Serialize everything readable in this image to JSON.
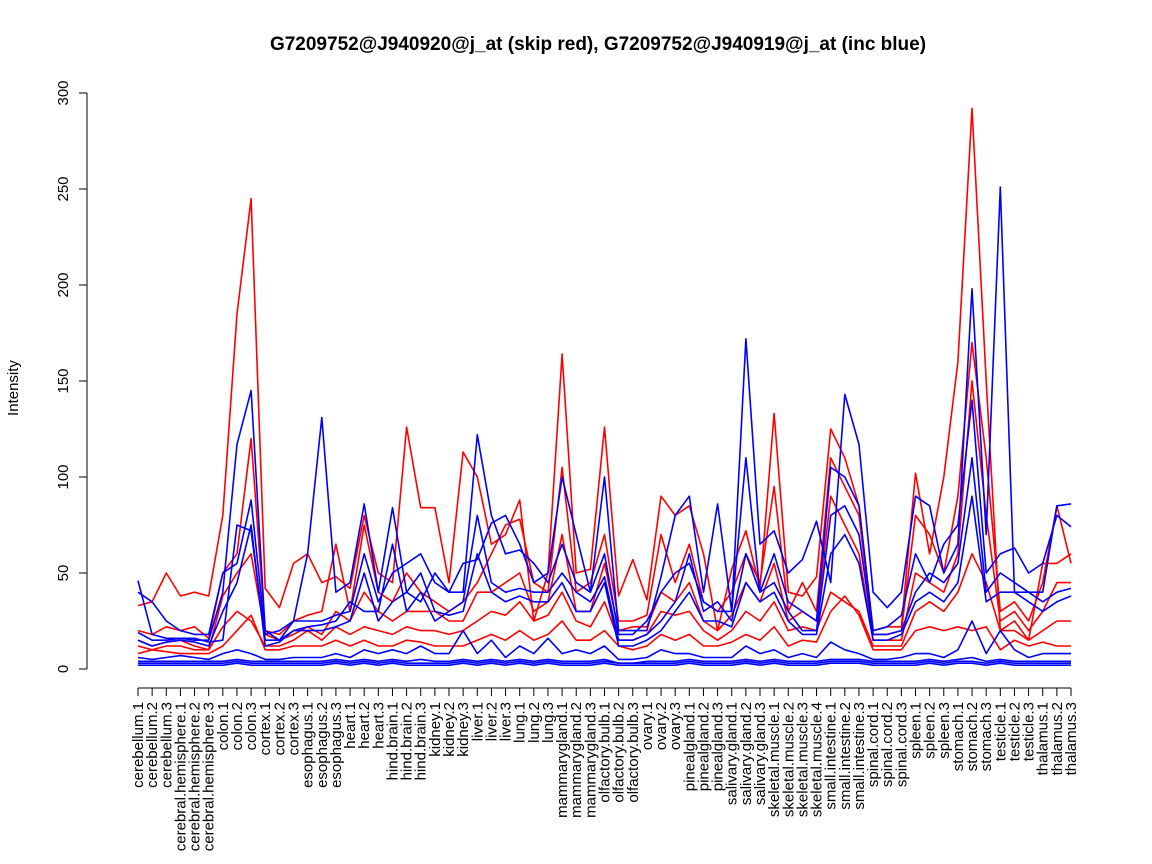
{
  "chart_data": {
    "type": "line",
    "title": "G7209752@J940920@j_at (skip red), G7209752@J940919@j_at (inc blue)",
    "xlabel": "",
    "ylabel": "Intensity",
    "ylim": [
      0,
      300
    ],
    "yticks": [
      0,
      50,
      100,
      150,
      200,
      250,
      300
    ],
    "grid": false,
    "legend": "none",
    "colors": {
      "skip": "#ff0000",
      "inc": "#0000ff",
      "axis": "#000000"
    },
    "categories": [
      "cerebellum.1",
      "cerebellum.2",
      "cerebellum.3",
      "cerebral.hemisphere.1",
      "cerebral.hemisphere.2",
      "cerebral.hemisphere.3",
      "colon.1",
      "colon.2",
      "colon.3",
      "cortex.1",
      "cortex.2",
      "cortex.3",
      "esophagus.1",
      "esophagus.2",
      "esophagus.3",
      "heart.1",
      "heart.2",
      "heart.3",
      "hind.brain.1",
      "hind.brain.2",
      "hind.brain.3",
      "kidney.1",
      "kidney.2",
      "kidney.3",
      "liver.1",
      "liver.2",
      "liver.3",
      "lung.1",
      "lung.2",
      "lung.3",
      "mammarygland.1",
      "mammarygland.2",
      "mammarygland.3",
      "olfactory.bulb.1",
      "olfactory.bulb.2",
      "olfactory.bulb.3",
      "ovary.1",
      "ovary.2",
      "ovary.3",
      "pinealgland.1",
      "pinealgland.2",
      "pinealgland.3",
      "salivary.gland.1",
      "salivary.gland.2",
      "salivary.gland.3",
      "skeletal.muscle.1",
      "skeletal.muscle.2",
      "skeletal.muscle.3",
      "skeletal.muscle.4",
      "small.intestine.1",
      "small.intestine.2",
      "small.intestine.3",
      "spinal.cord.1",
      "spinal.cord.2",
      "spinal.cord.3",
      "spleen.1",
      "spleen.2",
      "spleen.3",
      "stomach.1",
      "stomach.2",
      "stomach.3",
      "testicle.1",
      "testicle.2",
      "testicle.3",
      "thalamus.1",
      "thalamus.2",
      "thalamus.3"
    ],
    "series": [
      {
        "group": "skip",
        "values": [
          33,
          35,
          50,
          38,
          40,
          38,
          80,
          185,
          245,
          42,
          32,
          55,
          60,
          45,
          48,
          42,
          80,
          50,
          45,
          126,
          84,
          84,
          45,
          113,
          100,
          65,
          70,
          88,
          25,
          50,
          164,
          50,
          52,
          126,
          38,
          57,
          36,
          90,
          80,
          85,
          60,
          20,
          52,
          72,
          42,
          133,
          40,
          38,
          48,
          125,
          110,
          85,
          20,
          22,
          22,
          102,
          60,
          100,
          160,
          292,
          150,
          20,
          25,
          15,
          55,
          55,
          60
        ]
      },
      {
        "group": "skip",
        "values": [
          20,
          18,
          22,
          20,
          22,
          16,
          50,
          60,
          120,
          20,
          18,
          25,
          28,
          30,
          65,
          30,
          75,
          40,
          35,
          50,
          40,
          35,
          30,
          35,
          45,
          60,
          75,
          78,
          45,
          40,
          105,
          40,
          45,
          70,
          25,
          25,
          28,
          70,
          45,
          65,
          35,
          30,
          40,
          60,
          45,
          95,
          30,
          45,
          30,
          110,
          95,
          80,
          18,
          18,
          20,
          80,
          70,
          50,
          90,
          170,
          110,
          30,
          35,
          25,
          45,
          85,
          55
        ]
      },
      {
        "group": "skip",
        "values": [
          15,
          12,
          14,
          15,
          12,
          10,
          38,
          50,
          60,
          18,
          15,
          18,
          22,
          18,
          30,
          25,
          40,
          30,
          25,
          30,
          30,
          30,
          25,
          25,
          40,
          40,
          45,
          50,
          30,
          35,
          70,
          30,
          30,
          55,
          20,
          22,
          22,
          40,
          35,
          45,
          25,
          20,
          28,
          45,
          35,
          55,
          25,
          30,
          25,
          90,
          75,
          60,
          15,
          15,
          15,
          50,
          45,
          40,
          60,
          150,
          80,
          25,
          30,
          20,
          30,
          45,
          45
        ]
      },
      {
        "group": "skip",
        "values": [
          12,
          10,
          12,
          12,
          10,
          10,
          22,
          30,
          25,
          12,
          12,
          15,
          20,
          15,
          22,
          18,
          22,
          20,
          18,
          22,
          20,
          20,
          18,
          20,
          25,
          30,
          28,
          35,
          25,
          28,
          40,
          25,
          22,
          35,
          15,
          15,
          18,
          30,
          28,
          30,
          20,
          15,
          20,
          30,
          25,
          35,
          20,
          22,
          20,
          40,
          35,
          30,
          12,
          12,
          12,
          30,
          35,
          30,
          40,
          60,
          45,
          20,
          20,
          15,
          20,
          25,
          25
        ]
      },
      {
        "group": "skip",
        "values": [
          8,
          10,
          9,
          8,
          8,
          8,
          12,
          20,
          28,
          10,
          10,
          12,
          12,
          12,
          15,
          12,
          15,
          12,
          12,
          15,
          14,
          12,
          12,
          12,
          15,
          18,
          15,
          20,
          15,
          18,
          25,
          15,
          15,
          20,
          12,
          10,
          12,
          18,
          15,
          18,
          12,
          12,
          14,
          18,
          15,
          22,
          12,
          15,
          14,
          30,
          38,
          28,
          10,
          10,
          10,
          20,
          22,
          20,
          22,
          20,
          22,
          10,
          15,
          12,
          14,
          12,
          12
        ]
      },
      {
        "group": "inc",
        "values": [
          46,
          18,
          16,
          16,
          15,
          15,
          40,
          117,
          145,
          20,
          15,
          25,
          60,
          131,
          40,
          45,
          86,
          40,
          84,
          40,
          35,
          50,
          40,
          55,
          57,
          76,
          80,
          65,
          45,
          50,
          100,
          70,
          40,
          100,
          20,
          20,
          20,
          48,
          80,
          90,
          40,
          86,
          30,
          172,
          65,
          72,
          50,
          57,
          77,
          45,
          143,
          117,
          40,
          32,
          40,
          90,
          85,
          50,
          65,
          198,
          70,
          251,
          40,
          40,
          40,
          85,
          86
        ]
      },
      {
        "group": "inc",
        "values": [
          40,
          35,
          25,
          20,
          18,
          18,
          50,
          55,
          88,
          18,
          20,
          25,
          25,
          25,
          28,
          30,
          60,
          35,
          50,
          55,
          60,
          45,
          40,
          40,
          122,
          80,
          60,
          62,
          55,
          45,
          65,
          45,
          40,
          60,
          18,
          18,
          25,
          40,
          50,
          55,
          35,
          30,
          30,
          110,
          40,
          60,
          35,
          30,
          25,
          105,
          100,
          85,
          20,
          22,
          28,
          60,
          45,
          65,
          75,
          140,
          50,
          60,
          63,
          50,
          55,
          80,
          74
        ]
      },
      {
        "group": "inc",
        "values": [
          19,
          15,
          15,
          16,
          16,
          14,
          15,
          75,
          72,
          15,
          15,
          20,
          22,
          23,
          25,
          35,
          30,
          30,
          65,
          30,
          40,
          25,
          30,
          35,
          80,
          45,
          40,
          42,
          40,
          40,
          50,
          40,
          35,
          48,
          15,
          15,
          18,
          25,
          35,
          60,
          30,
          35,
          25,
          60,
          40,
          45,
          30,
          20,
          20,
          80,
          85,
          70,
          18,
          18,
          20,
          40,
          50,
          45,
          55,
          110,
          40,
          50,
          45,
          40,
          35,
          40,
          42
        ]
      },
      {
        "group": "inc",
        "values": [
          15,
          12,
          14,
          15,
          14,
          12,
          30,
          45,
          75,
          12,
          14,
          20,
          20,
          20,
          22,
          25,
          50,
          25,
          35,
          40,
          50,
          30,
          28,
          30,
          60,
          40,
          35,
          38,
          35,
          35,
          45,
          30,
          30,
          45,
          12,
          12,
          15,
          20,
          30,
          40,
          25,
          25,
          22,
          45,
          35,
          40,
          25,
          18,
          18,
          60,
          70,
          55,
          15,
          15,
          18,
          35,
          40,
          35,
          45,
          90,
          35,
          40,
          40,
          35,
          30,
          35,
          38
        ]
      },
      {
        "group": "inc",
        "values": [
          6,
          5,
          6,
          7,
          6,
          5,
          8,
          10,
          8,
          5,
          5,
          6,
          6,
          6,
          8,
          6,
          10,
          8,
          10,
          8,
          12,
          8,
          8,
          20,
          8,
          15,
          6,
          12,
          8,
          16,
          8,
          10,
          8,
          12,
          5,
          5,
          6,
          10,
          8,
          8,
          6,
          6,
          6,
          12,
          8,
          10,
          6,
          8,
          6,
          14,
          10,
          8,
          5,
          5,
          6,
          8,
          8,
          6,
          10,
          25,
          8,
          20,
          10,
          6,
          8,
          8,
          8
        ]
      },
      {
        "group": "inc",
        "values": [
          4,
          4,
          4,
          4,
          4,
          4,
          4,
          5,
          4,
          4,
          4,
          4,
          4,
          4,
          5,
          4,
          5,
          4,
          5,
          4,
          5,
          4,
          4,
          5,
          4,
          5,
          4,
          5,
          4,
          5,
          4,
          4,
          4,
          5,
          3,
          3,
          4,
          4,
          4,
          5,
          4,
          4,
          4,
          5,
          4,
          5,
          4,
          4,
          4,
          5,
          5,
          5,
          4,
          4,
          4,
          4,
          5,
          4,
          5,
          6,
          4,
          5,
          4,
          4,
          4,
          4,
          4
        ]
      },
      {
        "group": "inc",
        "values": [
          3,
          3,
          3,
          3,
          3,
          3,
          3,
          4,
          3,
          3,
          3,
          3,
          3,
          3,
          4,
          3,
          4,
          3,
          4,
          3,
          3,
          3,
          3,
          4,
          3,
          4,
          3,
          4,
          3,
          4,
          3,
          3,
          3,
          4,
          3,
          3,
          3,
          3,
          3,
          4,
          3,
          3,
          3,
          4,
          3,
          4,
          3,
          3,
          3,
          4,
          4,
          4,
          3,
          3,
          3,
          3,
          4,
          3,
          4,
          4,
          3,
          4,
          3,
          3,
          3,
          3,
          3
        ]
      },
      {
        "group": "inc",
        "values": [
          2,
          2,
          2,
          2,
          2,
          2,
          2,
          3,
          2,
          2,
          2,
          2,
          2,
          2,
          3,
          2,
          3,
          2,
          3,
          2,
          2,
          2,
          2,
          3,
          2,
          3,
          2,
          3,
          2,
          3,
          2,
          2,
          2,
          3,
          2,
          2,
          2,
          2,
          2,
          3,
          2,
          2,
          2,
          3,
          2,
          3,
          2,
          2,
          2,
          3,
          3,
          3,
          2,
          2,
          2,
          2,
          3,
          2,
          3,
          3,
          2,
          3,
          2,
          2,
          2,
          2,
          2
        ]
      }
    ]
  }
}
